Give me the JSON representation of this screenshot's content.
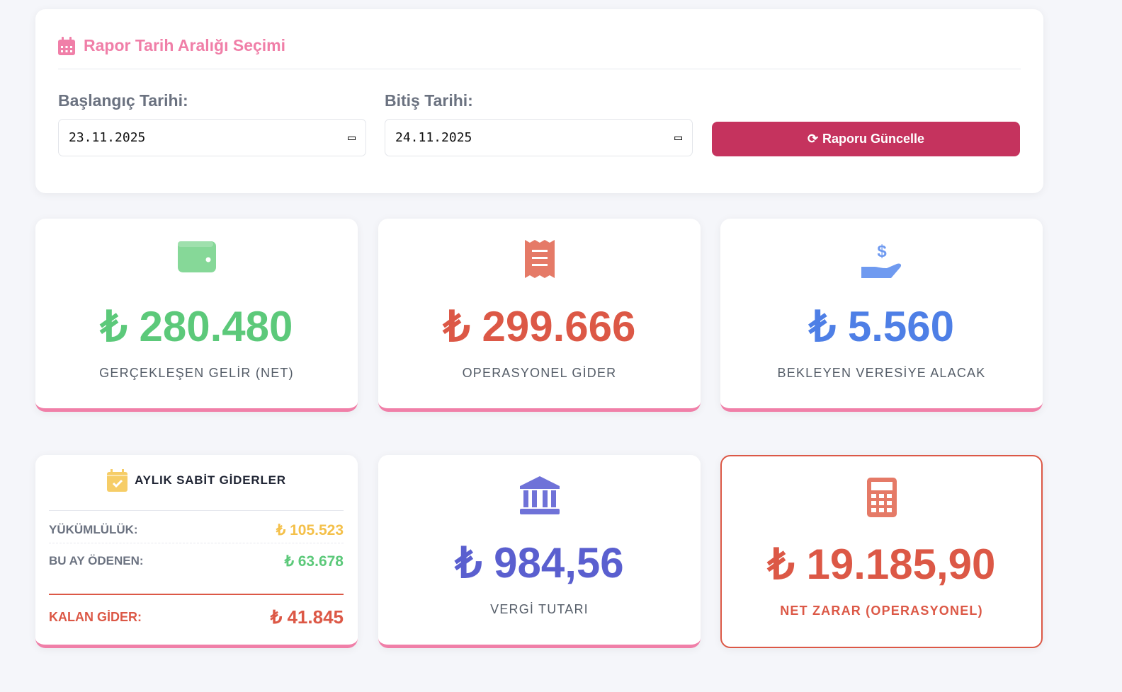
{
  "filter": {
    "title": "Rapor Tarih Aralığı Seçimi",
    "start_label": "Başlangıç Tarihi:",
    "start_value": "23.11.2025",
    "end_label": "Bitiş Tarihi:",
    "end_value": "24.11.2025",
    "update_button": "Raporu Güncelle"
  },
  "stats": [
    {
      "value": "₺ 280.480",
      "caption": "GERÇEKLEŞEN GELİR (NET)",
      "icon": "wallet-icon",
      "color": "#5cc97a"
    },
    {
      "value": "₺ 299.666",
      "caption": "OPERASYONEL GİDER",
      "icon": "receipt-icon",
      "color": "#dc5846"
    },
    {
      "value": "₺ 5.560",
      "caption": "BEKLEYEN VERESİYE ALACAK",
      "icon": "hand-holding-dollar-icon",
      "color": "#4e7fe6"
    },
    {
      "value": "₺ 984,56",
      "caption": "VERGİ TUTARI",
      "icon": "bank-icon",
      "color": "#5a5fcf"
    },
    {
      "value": "₺ 19.185,90",
      "caption": "NET ZARAR (OPERASYONEL)",
      "icon": "calculator-icon",
      "color": "#dc5846"
    }
  ],
  "fixed": {
    "title": "AYLIK SABİT GİDERLER",
    "obligation_label": "YÜKÜMLÜLÜK:",
    "obligation_value": "₺ 105.523",
    "paid_label": "BU AY ÖDENEN:",
    "paid_value": "₺ 63.678",
    "remaining_label": "KALAN GİDER:",
    "remaining_value": "₺ 41.845"
  }
}
